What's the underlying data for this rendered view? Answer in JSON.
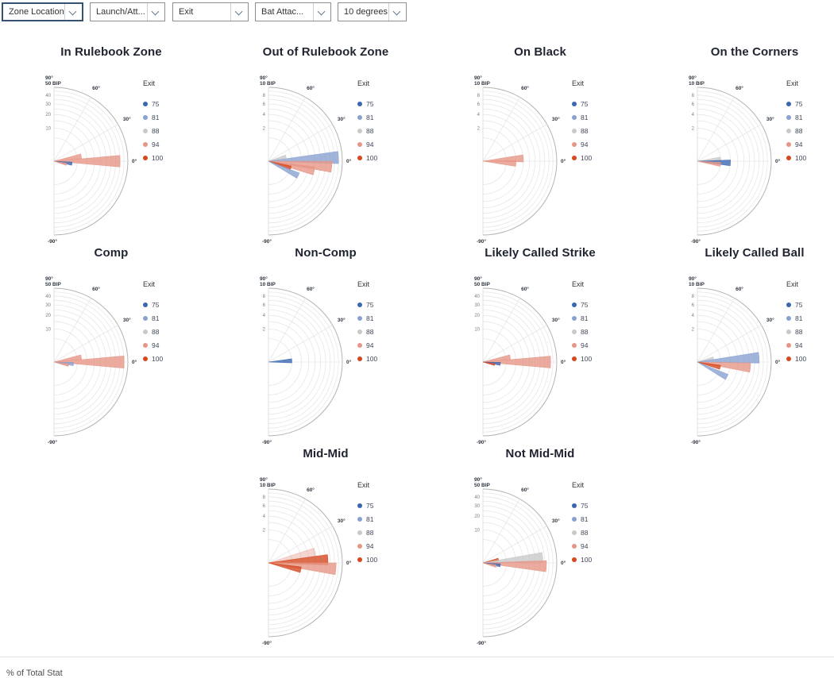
{
  "toolbar": {
    "dropdowns": [
      {
        "value": "Zone Location",
        "focused": true
      },
      {
        "value": "Launch/Att...",
        "focused": false
      },
      {
        "value": "Exit",
        "focused": false
      },
      {
        "value": "Bat Attac...",
        "focused": false
      },
      {
        "value": "10 degrees",
        "focused": false
      }
    ]
  },
  "legend": {
    "title": "Exit",
    "entries": [
      {
        "label": "75",
        "color": "#3b66b0"
      },
      {
        "label": "81",
        "color": "#89a1d1"
      },
      {
        "label": "88",
        "color": "#c9c9c9"
      },
      {
        "label": "94",
        "color": "#e69687"
      },
      {
        "label": "100",
        "color": "#d5491f"
      }
    ]
  },
  "footer": {
    "label": "% of Total Stat"
  },
  "chart_data": [
    {
      "type": "polar_bar",
      "title": "In Rulebook Zone",
      "row": 0,
      "col": 0,
      "radial": {
        "max": 50,
        "ticks": [
          40,
          30,
          20,
          10
        ],
        "scale": "sqrt",
        "label": "50 BIP"
      },
      "angle": {
        "labels": [
          "90°",
          "60°",
          "30°",
          "0°",
          "-90°"
        ],
        "bin_width_degrees": 10,
        "range": [
          -90,
          90
        ]
      },
      "bars": [
        {
          "angle": 10,
          "value": 7,
          "exit": "94"
        },
        {
          "angle": 0,
          "value": 40,
          "exit": "94"
        },
        {
          "angle": -8,
          "value": 3,
          "exit": "75"
        },
        {
          "angle": -14,
          "value": 1.5,
          "exit": "94"
        }
      ]
    },
    {
      "type": "polar_bar",
      "title": "Out of Rulebook Zone",
      "row": 0,
      "col": 1,
      "radial": {
        "max": 10,
        "ticks": [
          8,
          6,
          4,
          2
        ],
        "scale": "sqrt",
        "label": "10 BIP"
      },
      "angle": {
        "labels": [
          "90°",
          "60°",
          "30°",
          "0°",
          "-90°"
        ],
        "bin_width_degrees": 10,
        "range": [
          -90,
          90
        ]
      },
      "bars": [
        {
          "angle": 15,
          "value": 0.6,
          "exit": "88"
        },
        {
          "angle": 3,
          "value": 9,
          "exit": "81"
        },
        {
          "angle": -5,
          "value": 7.4,
          "exit": "94"
        },
        {
          "angle": -12,
          "value": 4,
          "exit": "94"
        },
        {
          "angle": -17,
          "value": 1,
          "exit": "100"
        },
        {
          "angle": -26,
          "value": 2,
          "exit": "81"
        }
      ]
    },
    {
      "type": "polar_bar",
      "title": "On Black",
      "row": 0,
      "col": 2,
      "radial": {
        "max": 10,
        "ticks": [
          8,
          6,
          4,
          2
        ],
        "scale": "sqrt",
        "label": "10 BIP"
      },
      "angle": {
        "labels": [
          "90°",
          "60°",
          "30°",
          "0°",
          "-90°"
        ],
        "bin_width_degrees": 10,
        "range": [
          -90,
          90
        ]
      },
      "bars": [
        {
          "angle": 4,
          "value": 3,
          "exit": "94"
        },
        {
          "angle": -4,
          "value": 2,
          "exit": "94"
        }
      ]
    },
    {
      "type": "polar_bar",
      "title": "On the Corners",
      "row": 0,
      "col": 3,
      "radial": {
        "max": 10,
        "ticks": [
          8,
          6,
          4,
          2
        ],
        "scale": "sqrt",
        "label": "10 BIP"
      },
      "angle": {
        "labels": [
          "90°",
          "60°",
          "30°",
          "0°",
          "-90°"
        ],
        "bin_width_degrees": 10,
        "range": [
          -90,
          90
        ]
      },
      "bars": [
        {
          "angle": 5,
          "value": 1,
          "exit": "88"
        },
        {
          "angle": -3,
          "value": 2,
          "exit": "75"
        },
        {
          "angle": -8,
          "value": 1,
          "exit": "94"
        }
      ]
    },
    {
      "type": "polar_bar",
      "title": "Comp",
      "row": 1,
      "col": 0,
      "radial": {
        "max": 50,
        "ticks": [
          40,
          30,
          20,
          10
        ],
        "scale": "sqrt",
        "label": "50 BIP"
      },
      "angle": {
        "labels": [
          "90°",
          "60°",
          "30°",
          "0°",
          "-90°"
        ],
        "bin_width_degrees": 10,
        "range": [
          -90,
          90
        ]
      },
      "bars": [
        {
          "angle": 10,
          "value": 7,
          "exit": "94"
        },
        {
          "angle": 0,
          "value": 45,
          "exit": "94"
        },
        {
          "angle": -6,
          "value": 3.5,
          "exit": "81"
        },
        {
          "angle": -12,
          "value": 2,
          "exit": "94"
        }
      ]
    },
    {
      "type": "polar_bar",
      "title": "Non-Comp",
      "row": 1,
      "col": 1,
      "radial": {
        "max": 10,
        "ticks": [
          8,
          6,
          4,
          2
        ],
        "scale": "sqrt",
        "label": "10 BIP"
      },
      "angle": {
        "labels": [
          "90°",
          "60°",
          "30°",
          "0°",
          "-90°"
        ],
        "bin_width_degrees": 10,
        "range": [
          -90,
          90
        ]
      },
      "bars": [
        {
          "angle": 3,
          "value": 1,
          "exit": "75"
        }
      ]
    },
    {
      "type": "polar_bar",
      "title": "Likely Called Strike",
      "row": 1,
      "col": 2,
      "radial": {
        "max": 50,
        "ticks": [
          40,
          30,
          20,
          10
        ],
        "scale": "sqrt",
        "label": "50 BIP"
      },
      "angle": {
        "labels": [
          "90°",
          "60°",
          "30°",
          "0°",
          "-90°"
        ],
        "bin_width_degrees": 10,
        "range": [
          -90,
          90
        ]
      },
      "bars": [
        {
          "angle": 10,
          "value": 7,
          "exit": "94"
        },
        {
          "angle": 0,
          "value": 42,
          "exit": "94"
        },
        {
          "angle": -6,
          "value": 2.8,
          "exit": "75"
        },
        {
          "angle": -12,
          "value": 1.3,
          "exit": "100"
        }
      ]
    },
    {
      "type": "polar_bar",
      "title": "Likely Called Ball",
      "row": 1,
      "col": 3,
      "radial": {
        "max": 10,
        "ticks": [
          8,
          6,
          4,
          2
        ],
        "scale": "sqrt",
        "label": "10 BIP"
      },
      "angle": {
        "labels": [
          "90°",
          "60°",
          "30°",
          "0°",
          "-90°"
        ],
        "bin_width_degrees": 10,
        "range": [
          -90,
          90
        ]
      },
      "bars": [
        {
          "angle": 13,
          "value": 0.5,
          "exit": "88"
        },
        {
          "angle": 4,
          "value": 7,
          "exit": "81"
        },
        {
          "angle": -6,
          "value": 5.2,
          "exit": "94"
        },
        {
          "angle": -13,
          "value": 1,
          "exit": "100"
        },
        {
          "angle": -27,
          "value": 2,
          "exit": "81"
        }
      ]
    },
    {
      "type": "polar_bar",
      "title": "Mid-Mid",
      "row": 2,
      "col": 1,
      "radial": {
        "max": 10,
        "ticks": [
          8,
          6,
          4,
          2
        ],
        "scale": "sqrt",
        "label": "10 BIP"
      },
      "angle": {
        "labels": [
          "90°",
          "60°",
          "30°",
          "0°",
          "-90°"
        ],
        "bin_width_degrees": 10,
        "range": [
          -90,
          90
        ]
      },
      "bars": [
        {
          "angle": 13,
          "value": 4.2,
          "exit": "94",
          "light": true
        },
        {
          "angle": 3,
          "value": 6.5,
          "exit": "100"
        },
        {
          "angle": -5,
          "value": 8.4,
          "exit": "94"
        },
        {
          "angle": -12,
          "value": 2,
          "exit": "100"
        }
      ]
    },
    {
      "type": "polar_bar",
      "title": "Not Mid-Mid",
      "row": 2,
      "col": 2,
      "radial": {
        "max": 50,
        "ticks": [
          40,
          30,
          20,
          10
        ],
        "scale": "sqrt",
        "label": "50 BIP"
      },
      "angle": {
        "labels": [
          "90°",
          "60°",
          "30°",
          "0°",
          "-90°"
        ],
        "bin_width_degrees": 10,
        "range": [
          -90,
          90
        ]
      },
      "bars": [
        {
          "angle": 12,
          "value": 2.3,
          "exit": "100"
        },
        {
          "angle": 5,
          "value": 33,
          "exit": "88"
        },
        {
          "angle": -3,
          "value": 37,
          "exit": "94"
        },
        {
          "angle": -8,
          "value": 2.8,
          "exit": "75"
        },
        {
          "angle": -14,
          "value": 1.7,
          "exit": "94"
        }
      ]
    }
  ]
}
